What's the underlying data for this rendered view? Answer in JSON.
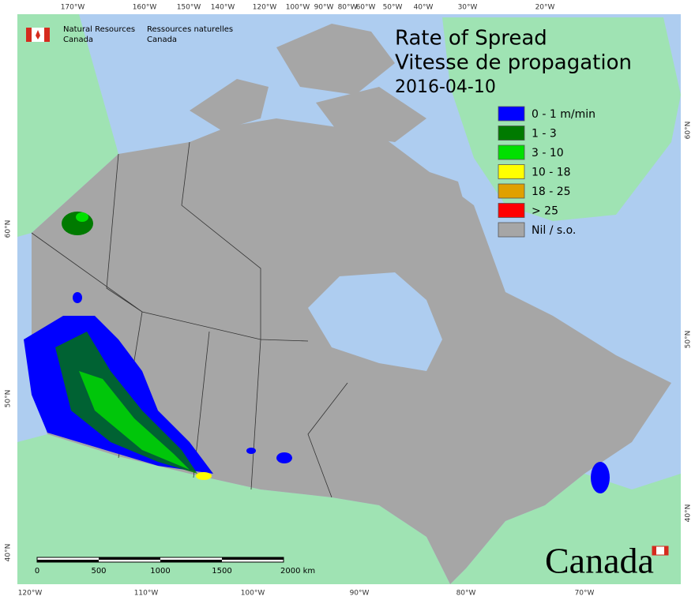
{
  "header": {
    "agency_en": [
      "Natural Resources",
      "Canada"
    ],
    "agency_fr": [
      "Ressources naturelles",
      "Canada"
    ]
  },
  "title": [
    "Rate of Spread",
    "Vitesse de propagation"
  ],
  "date": "2016-04-10",
  "legend": [
    {
      "label": "0 - 1 m/min",
      "color": "#0000ff"
    },
    {
      "label": "1 - 3",
      "color": "#007a00"
    },
    {
      "label": "3 - 10",
      "color": "#00e000"
    },
    {
      "label": "10 - 18",
      "color": "#ffff00"
    },
    {
      "label": "18 - 25",
      "color": "#e0a000"
    },
    {
      "label": "> 25",
      "color": "#ff0000"
    },
    {
      "label": "Nil / s.o.",
      "color": "#a6a6a6"
    }
  ],
  "graticule": {
    "top": [
      "170°W",
      "160°W",
      "150°W",
      "140°W",
      "120°W",
      "100°W",
      "90°W",
      "80°W",
      "60°W",
      "50°W",
      "40°W",
      "30°W",
      "20°W"
    ],
    "bottom": [
      "120°W",
      "110°W",
      "100°W",
      "90°W",
      "80°W",
      "70°W"
    ],
    "left": [
      "60°N",
      "50°N",
      "40°N"
    ],
    "right": [
      "60°N",
      "50°N",
      "40°N"
    ]
  },
  "scale_bar": [
    "0",
    "500",
    "1000",
    "1500",
    "2000  km"
  ],
  "wordmark": "Canada"
}
